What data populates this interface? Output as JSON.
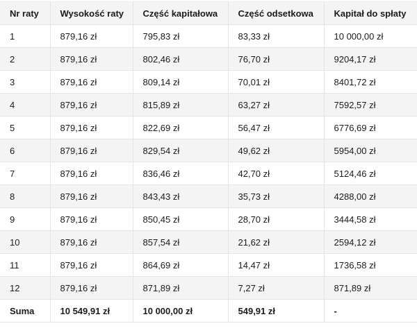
{
  "table": {
    "columns": [
      "Nr raty",
      "Wysokość raty",
      "Część kapitałowa",
      "Część odsetkowa",
      "Kapitał do spłaty"
    ],
    "rows": [
      [
        "1",
        "879,16 zł",
        "795,83 zł",
        "83,33 zł",
        "10 000,00 zł"
      ],
      [
        "2",
        "879,16 zł",
        "802,46 zł",
        "76,70 zł",
        "9204,17 zł"
      ],
      [
        "3",
        "879,16 zł",
        "809,14 zł",
        "70,01 zł",
        "8401,72 zł"
      ],
      [
        "4",
        "879,16 zł",
        "815,89 zł",
        "63,27 zł",
        "7592,57 zł"
      ],
      [
        "5",
        "879,16 zł",
        "822,69 zł",
        "56,47 zł",
        "6776,69 zł"
      ],
      [
        "6",
        "879,16 zł",
        "829,54 zł",
        "49,62 zł",
        "5954,00 zł"
      ],
      [
        "7",
        "879,16 zł",
        "836,46 zł",
        "42,70 zł",
        "5124,46 zł"
      ],
      [
        "8",
        "879,16 zł",
        "843,43 zł",
        "35,73 zł",
        "4288,00 zł"
      ],
      [
        "9",
        "879,16 zł",
        "850,45 zł",
        "28,70 zł",
        "3444,58 zł"
      ],
      [
        "10",
        "879,16 zł",
        "857,54 zł",
        "21,62 zł",
        "2594,12 zł"
      ],
      [
        "11",
        "879,16 zł",
        "864,69 zł",
        "14,47 zł",
        "1736,58 zł"
      ],
      [
        "12",
        "879,16 zł",
        "871,89 zł",
        "7,27 zł",
        "871,89 zł"
      ]
    ],
    "summary": [
      "Suma",
      "10 549,91 zł",
      "10 000,00 zł",
      "549,91 zł",
      "-"
    ]
  },
  "colors": {
    "header_background": "#f4f4f5",
    "stripe_background": "#f4f4f5",
    "row_background": "#ffffff",
    "border": "#e4e4e7",
    "text": "#1b1b1f"
  }
}
